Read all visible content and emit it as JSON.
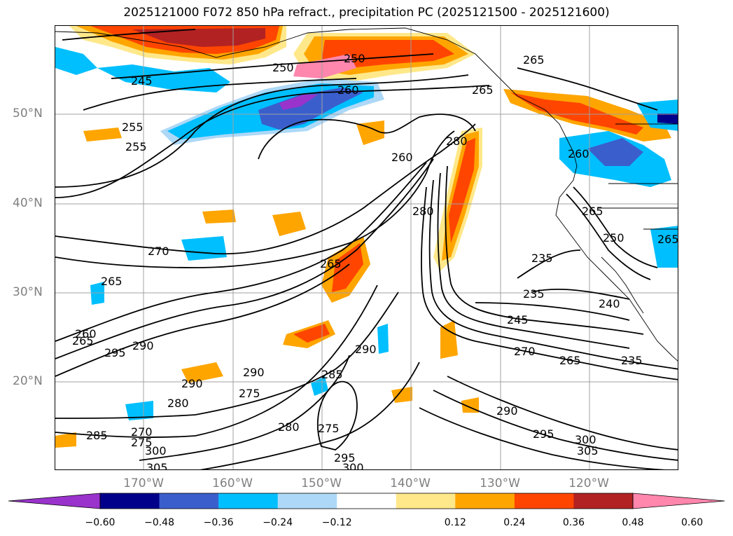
{
  "title": "2025121000 F072 850 hPa refract., precipitation PC (2025121500 - 2025121600)",
  "lat_labels": [
    "50°N",
    "40°N",
    "30°N",
    "20°N"
  ],
  "lon_labels": [
    "170°W",
    "160°W",
    "150°W",
    "140°W",
    "130°W",
    "120°W"
  ],
  "colorbar": {
    "ticks": [
      "−0.60",
      "−0.48",
      "−0.36",
      "−0.24",
      "−0.12",
      "0.12",
      "0.24",
      "0.36",
      "0.48",
      "0.60"
    ],
    "colors": [
      "#9933cc",
      "#00008b",
      "#3a5fcd",
      "#00bfff",
      "#add8f7",
      "#ffffff",
      "#ffe88a",
      "#ffa500",
      "#ff4500",
      "#b22222",
      "#ff86ad"
    ],
    "extend": "both"
  },
  "contour_labels": [
    "250",
    "250",
    "245",
    "265",
    "260",
    "265",
    "255",
    "255",
    "280",
    "260",
    "265",
    "280",
    "265",
    "260",
    "270",
    "265",
    "235",
    "250",
    "265",
    "235",
    "240",
    "265",
    "245",
    "260",
    "290",
    "295",
    "290",
    "270",
    "290",
    "285",
    "265",
    "290",
    "275",
    "280",
    "270",
    "285",
    "275",
    "300",
    "280",
    "275",
    "295",
    "290",
    "300",
    "305",
    "295",
    "300",
    "305",
    "235"
  ],
  "colors": {
    "grid": "#a0a0a0",
    "axis_label": "#808080",
    "contour": "#000000"
  }
}
